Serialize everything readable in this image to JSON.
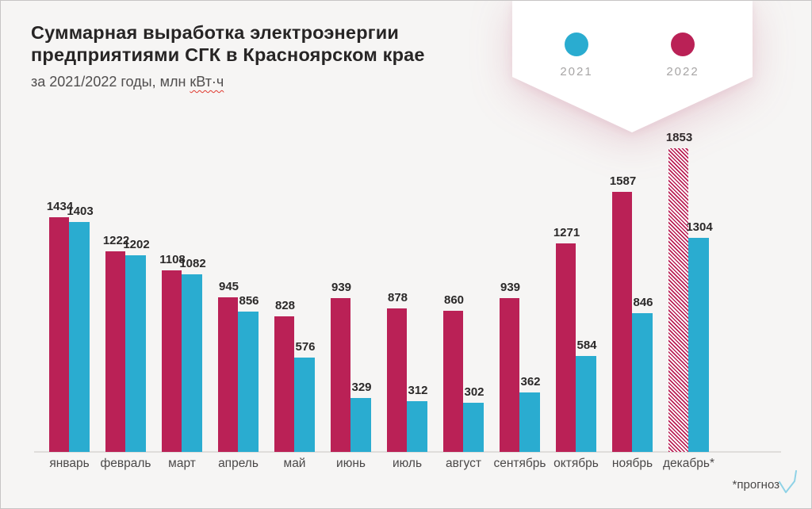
{
  "header": {
    "title_line1": "Суммарная выработка электроэнергии",
    "title_line2": "предприятиями СГК в Красноярском крае",
    "subtitle_prefix": "за 2021/2022 годы, млн ",
    "subtitle_unit": "кВт·ч"
  },
  "legend": {
    "items": [
      {
        "label": "2021",
        "color": "#2aacd0"
      },
      {
        "label": "2022",
        "color": "#ba2156"
      }
    ]
  },
  "footnote": {
    "label": "*прогноз",
    "icon": "check-icon",
    "icon_color": "#8fd2e6"
  },
  "colors": {
    "background": "#f6f5f4",
    "axis_line": "#dfdddb",
    "ribbon": "#ffffff",
    "series_2021": "#2aacd0",
    "series_2022": "#ba2156"
  },
  "chart_data": {
    "type": "bar",
    "title": "Суммарная выработка электроэнергии предприятиями СГК в Красноярском крае",
    "subtitle": "за 2021/2022 годы, млн кВт·ч",
    "ylabel": "млн кВт·ч",
    "xlabel": "",
    "ylim": [
      0,
      1853
    ],
    "grid": false,
    "legend_position": "top-right",
    "value_labels": true,
    "categories": [
      "январь",
      "февраль",
      "март",
      "апрель",
      "май",
      "июнь",
      "июль",
      "август",
      "сентябрь",
      "октябрь",
      "ноябрь",
      "декабрь*"
    ],
    "series": [
      {
        "name": "2022",
        "color": "#ba2156",
        "values": [
          1434,
          1222,
          1108,
          945,
          828,
          939,
          878,
          860,
          939,
          1271,
          1587,
          1853
        ]
      },
      {
        "name": "2021",
        "color": "#2aacd0",
        "values": [
          1403,
          1202,
          1082,
          856,
          576,
          329,
          312,
          302,
          362,
          584,
          846,
          1304
        ]
      }
    ],
    "forecast_series": "2022",
    "forecast_category": "декабрь*",
    "forecast_note": "*прогноз"
  }
}
